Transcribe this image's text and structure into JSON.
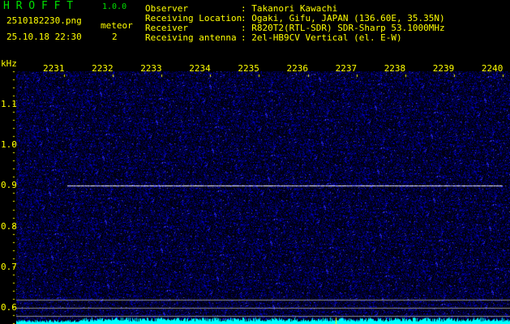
{
  "header": {
    "app_title": "H R O F F T",
    "version": "1.0.0",
    "filename": "2510182230.png",
    "datetime": "25.10.18 22:30",
    "meteor_label": "meteor",
    "meteor_count": "2"
  },
  "info": [
    {
      "key": "Observer",
      "value": ": Takanori Kawachi"
    },
    {
      "key": "Receiving Location",
      "value": ": Ogaki, Gifu, JAPAN (136.60E, 35.35N)"
    },
    {
      "key": "Receiver",
      "value": ": R820T2(RTL-SDR) SDR-Sharp 53.1000MHz"
    },
    {
      "key": "Receiving antenna",
      "value": ": 2el-HB9CV Vertical (el. E-W)"
    }
  ],
  "axes": {
    "y_unit": "kHz",
    "y_ticks": [
      "1.1",
      "1.0",
      "0.9",
      "0.8",
      "0.7",
      "0.6"
    ],
    "x_ticks": [
      "2231",
      "2232",
      "2233",
      "2234",
      "2235",
      "2236",
      "2237",
      "2238",
      "2239",
      "2240"
    ]
  },
  "spectrogram": {
    "echo_frequency_khz": 0.9,
    "echo_start_label": "2231",
    "colors": {
      "noise": "#1a1aff",
      "echo": "#ffffff",
      "level": "#00ffff",
      "labels": "#ffff00",
      "title": "#00e000"
    }
  }
}
